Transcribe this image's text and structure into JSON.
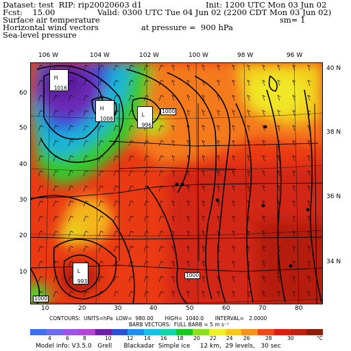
{
  "header": {
    "line1_left": "Dataset: test  RIP: rip20020603 d1",
    "line1_right": "Init: 1200 UTC Mon 03 Jun 02",
    "line2_left": "Fcst:    15.00",
    "line2_right": "Valid: 0300 UTC Tue 04 Jun 02 (2200 CDT Mon 03 Jun 02)",
    "line3_left": "Surface air temperature",
    "line3_right": "sm= 1",
    "line4_left": "Horizontal wind vectors",
    "line4_mid": "at pressure =  900 hPa",
    "line5_left": "Sea-level pressure"
  },
  "map": {
    "lon_labels": [
      "106 W",
      "104 W",
      "102 W",
      "100 W",
      "98 W",
      "96 W"
    ],
    "lat_labels_right": [
      "40 N",
      "38 N",
      "36 N",
      "34 N"
    ],
    "grid_y_labels": [
      "60",
      "50",
      "40",
      "30",
      "20",
      "10"
    ],
    "grid_x_labels": [
      "10",
      "20",
      "30",
      "40",
      "50",
      "60",
      "70",
      "80"
    ],
    "contour_labels": [
      "1016",
      "1008",
      "996",
      "1000",
      "1000",
      "1000",
      "1000",
      "1000"
    ],
    "pressure_centers": [
      {
        "label": "H",
        "value": "1016"
      },
      {
        "label": "H",
        "value": "1008"
      },
      {
        "label": "L",
        "value": "996"
      },
      {
        "label": "L",
        "value": "993"
      }
    ]
  },
  "footer": {
    "contours": "CONTOURS:  UNITS=hPa  LOW=  980.00       HIGH=  1040.0       INTERVAL=   2.0000",
    "barbs": "BARB VECTORS:  FULL BARB = 5 m s⁻¹",
    "model_info": "Model info: V3.5.0   Grell      Blackadar  Simple ice     12 km,  29 levels,   30 sec"
  },
  "colorbar": {
    "labels": [
      "4",
      "6",
      "8",
      "10",
      "12",
      "14",
      "16",
      "18",
      "20",
      "22",
      "24",
      "26",
      "28",
      "30",
      "°C"
    ],
    "colors": [
      "#3e6df0",
      "#6c6cf0",
      "#9a55e8",
      "#b044d4",
      "#6a1fa8",
      "#2a4fd8",
      "#1f8ef0",
      "#19c0e6",
      "#12d6a8",
      "#19c81e",
      "#8ce020",
      "#f0f028",
      "#f8c81c",
      "#f8901c",
      "#f04818",
      "#e01e10",
      "#c0200e",
      "#8c1e0c"
    ]
  }
}
